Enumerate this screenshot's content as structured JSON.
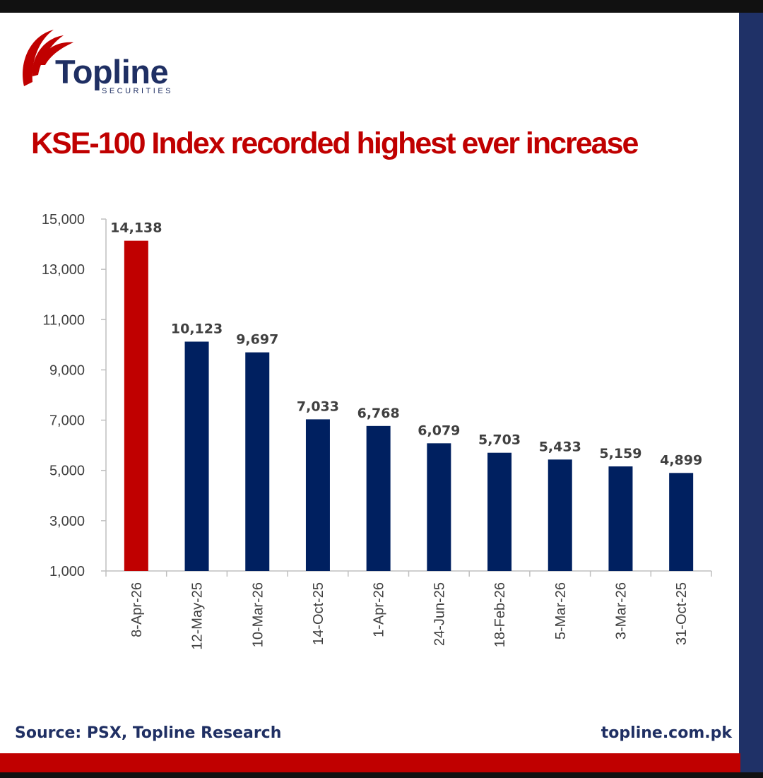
{
  "brand": {
    "name": "Topline",
    "sub": "SECURITIES",
    "logo_red": "#c00000",
    "navy": "#1f2f63"
  },
  "title": "KSE-100 Index recorded highest ever increase",
  "chart_data": {
    "type": "bar",
    "title": "KSE-100 Index recorded highest ever increase",
    "xlabel": "",
    "ylabel": "",
    "ylim": [
      1000,
      15000
    ],
    "yticks": [
      1000,
      3000,
      5000,
      7000,
      9000,
      11000,
      13000,
      15000
    ],
    "ytick_labels": [
      "1,000",
      "3,000",
      "5,000",
      "7,000",
      "9,000",
      "11,000",
      "13,000",
      "15,000"
    ],
    "categories": [
      "8-Apr-26",
      "12-May-25",
      "10-Mar-26",
      "14-Oct-25",
      "1-Apr-26",
      "24-Jun-25",
      "18-Feb-26",
      "5-Mar-26",
      "3-Mar-26",
      "31-Oct-25"
    ],
    "values": [
      14138,
      10123,
      9697,
      7033,
      6768,
      6079,
      5703,
      5433,
      5159,
      4899
    ],
    "value_labels": [
      "14,138",
      "10,123",
      "9,697",
      "7,033",
      "6,768",
      "6,079",
      "5,703",
      "5,433",
      "5,159",
      "4,899"
    ],
    "highlight_index": 0,
    "highlight_color": "#c00000",
    "bar_color": "#002060",
    "grid": false
  },
  "footer": {
    "source": "Source: PSX, Topline Research",
    "website": "topline.com.pk"
  }
}
